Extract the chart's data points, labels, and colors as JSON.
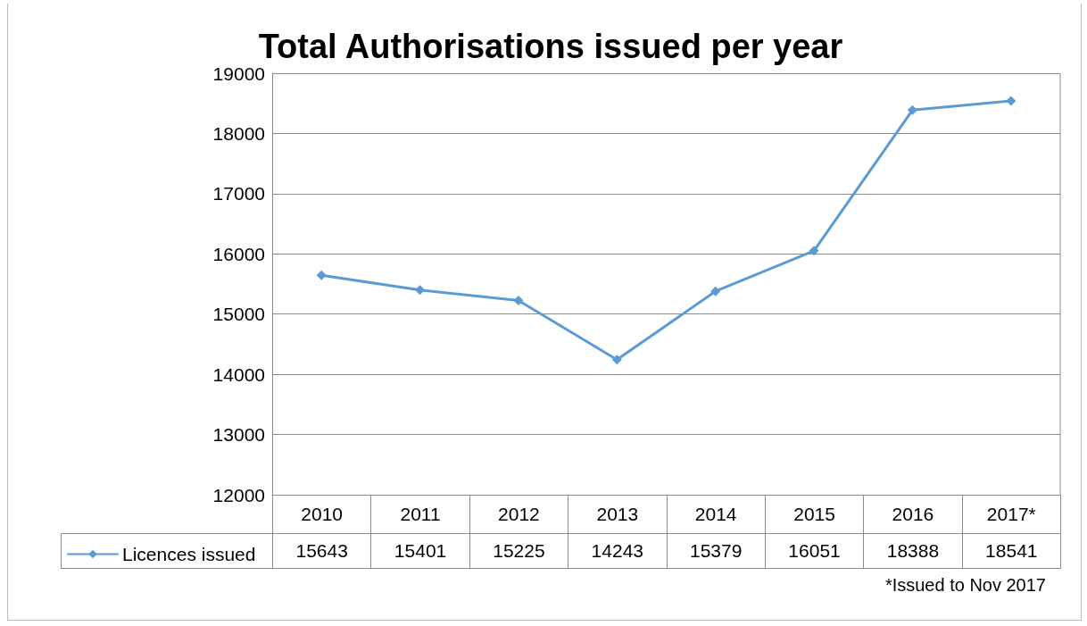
{
  "chart_data": {
    "type": "line",
    "title": "Total Authorisations issued per year",
    "categories": [
      "2010",
      "2011",
      "2012",
      "2013",
      "2014",
      "2015",
      "2016",
      "2017*"
    ],
    "series": [
      {
        "name": "Licences issued",
        "color": "#5b9bd5",
        "values": [
          15643,
          15401,
          15225,
          14243,
          15379,
          16051,
          18388,
          18541
        ]
      }
    ],
    "ylim": [
      12000,
      19000
    ],
    "yticks": [
      12000,
      13000,
      14000,
      15000,
      16000,
      17000,
      18000,
      19000
    ],
    "grid": "y",
    "marker": "diamond",
    "line_style": "solid",
    "legend": "bottom left",
    "data_labels": true,
    "annotations": [
      "*Issued to Nov 2017"
    ]
  }
}
